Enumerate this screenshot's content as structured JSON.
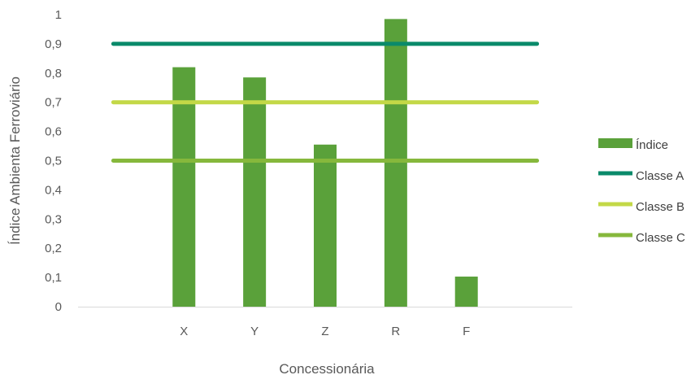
{
  "chart_data": {
    "type": "bar",
    "categories": [
      "",
      "X",
      "Y",
      "Z",
      "R",
      "F",
      ""
    ],
    "series": [
      {
        "name": "Índice",
        "kind": "bar",
        "values": [
          null,
          0.82,
          0.785,
          0.555,
          0.985,
          0.103,
          null
        ],
        "color": "#5aa13a"
      },
      {
        "name": "Classe A",
        "kind": "line",
        "values": [
          0.9,
          0.9,
          0.9,
          0.9,
          0.9,
          0.9,
          0.9
        ],
        "color": "#0a8a6a"
      },
      {
        "name": "Classe B",
        "kind": "line",
        "values": [
          0.7,
          0.7,
          0.7,
          0.7,
          0.7,
          0.7,
          0.7
        ],
        "color": "#c3d847"
      },
      {
        "name": "Classe C",
        "kind": "line",
        "values": [
          0.5,
          0.5,
          0.5,
          0.5,
          0.5,
          0.5,
          0.5
        ],
        "color": "#86b83c"
      }
    ],
    "y_ticks": [
      "0",
      "0,1",
      "0,2",
      "0,3",
      "0,4",
      "0,5",
      "0,6",
      "0,7",
      "0,8",
      "0,9",
      "1"
    ],
    "ylim": [
      0,
      1
    ],
    "xlabel": "Concessionária",
    "ylabel": "Índice Ambienta Ferroviário",
    "legend_position": "right",
    "grid": false
  }
}
